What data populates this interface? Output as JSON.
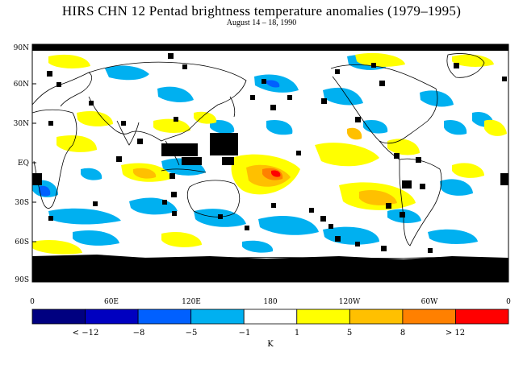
{
  "title": "HIRS CHN 12 Pentad brightness temperature anomalies (1979–1995)",
  "subtitle": "August 14 – 18, 1990",
  "lat_labels": [
    "90N",
    "60N",
    "30N",
    "EQ",
    "30S",
    "60S",
    "90S"
  ],
  "lon_labels": [
    "0",
    "60E",
    "120E",
    "180",
    "120W",
    "60W",
    "0"
  ],
  "legend": {
    "unit": "K",
    "colors": [
      "#000080",
      "#0000c0",
      "#0060ff",
      "#00b0f0",
      "#ffffff",
      "#ffff00",
      "#ffc000",
      "#ff8000",
      "#ff0000"
    ],
    "labels": [
      "< −12",
      "−8",
      "−5",
      "−1",
      "1",
      "5",
      "8",
      "> 12"
    ]
  },
  "colors": {
    "missing": "#000000",
    "coast": "#000000"
  }
}
